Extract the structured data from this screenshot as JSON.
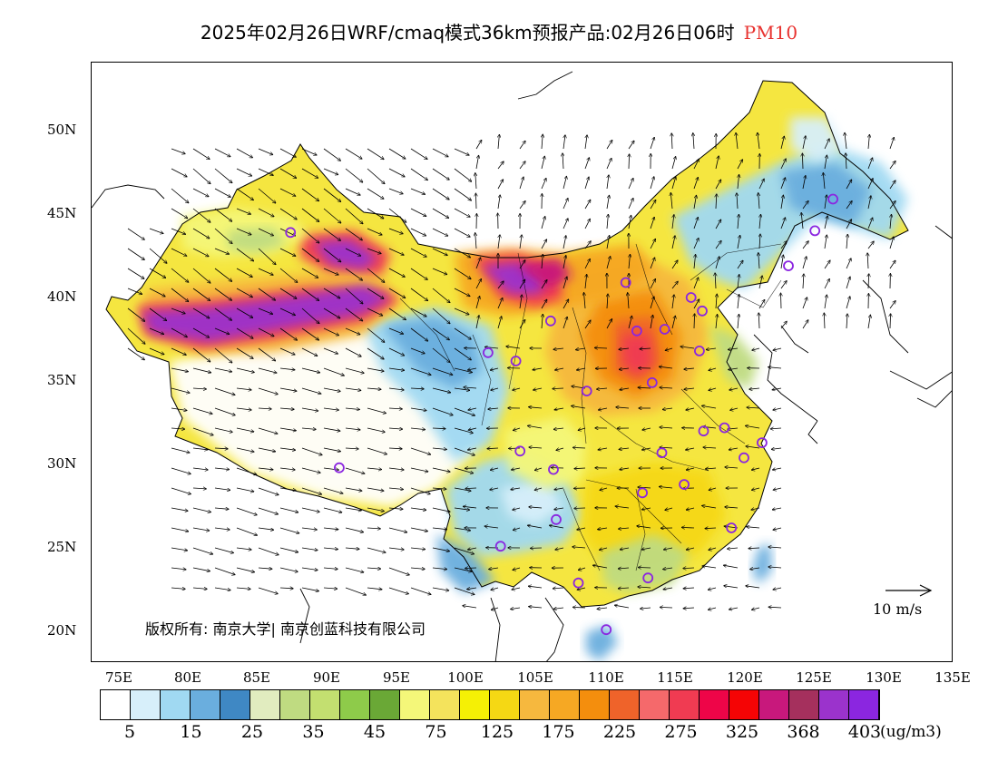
{
  "title": {
    "main": "2025年02月26日WRF/cmaq模式36km预报产品:02月26日06时",
    "pollutant": "PM10",
    "pollutant_color": "#e8322f"
  },
  "axes": {
    "lat_labels": [
      "50N",
      "45N",
      "40N",
      "35N",
      "30N",
      "25N",
      "20N"
    ],
    "lon_labels": [
      "75E",
      "80E",
      "85E",
      "90E",
      "95E",
      "100E",
      "105E",
      "110E",
      "115E",
      "120E",
      "125E",
      "130E",
      "135E"
    ]
  },
  "copyright": "版权所有: 南京大学| 南京创蓝科技有限公司",
  "wind_legend": "10 m/s",
  "colorbar": {
    "colors": [
      "#ffffff",
      "#d7effa",
      "#a0d9f2",
      "#6aaede",
      "#3f88c4",
      "#e1ecbf",
      "#bfdb81",
      "#c3df70",
      "#8ecb4a",
      "#6aa836",
      "#f4f779",
      "#f4e35c",
      "#f5f005",
      "#f5d814",
      "#f6b83e",
      "#f6a823",
      "#f48e0d",
      "#ef632a",
      "#f5696b",
      "#f03b52",
      "#ee0548",
      "#f50405",
      "#c8187c",
      "#a5305d",
      "#9b33cc",
      "#8b26e0"
    ],
    "labels": [
      "5",
      "15",
      "25",
      "35",
      "45",
      "75",
      "125",
      "175",
      "225",
      "275",
      "325",
      "368",
      "403"
    ],
    "unit": "(ug/m3)"
  },
  "stations": [
    {
      "lon": 87.6,
      "lat": 43.8
    },
    {
      "lon": 91.1,
      "lat": 29.7
    },
    {
      "lon": 101.8,
      "lat": 36.6
    },
    {
      "lon": 103.8,
      "lat": 36.1
    },
    {
      "lon": 106.3,
      "lat": 38.5
    },
    {
      "lon": 111.7,
      "lat": 40.8
    },
    {
      "lon": 112.5,
      "lat": 37.9
    },
    {
      "lon": 114.5,
      "lat": 38.0
    },
    {
      "lon": 116.4,
      "lat": 39.9
    },
    {
      "lon": 117.2,
      "lat": 39.1
    },
    {
      "lon": 117.0,
      "lat": 36.7
    },
    {
      "lon": 113.6,
      "lat": 34.8
    },
    {
      "lon": 108.9,
      "lat": 34.3
    },
    {
      "lon": 104.1,
      "lat": 30.7
    },
    {
      "lon": 106.5,
      "lat": 29.6
    },
    {
      "lon": 106.7,
      "lat": 26.6
    },
    {
      "lon": 102.7,
      "lat": 25.0
    },
    {
      "lon": 108.3,
      "lat": 22.8
    },
    {
      "lon": 113.3,
      "lat": 23.1
    },
    {
      "lon": 110.3,
      "lat": 20.0
    },
    {
      "lon": 114.3,
      "lat": 30.6
    },
    {
      "lon": 112.9,
      "lat": 28.2
    },
    {
      "lon": 115.9,
      "lat": 28.7
    },
    {
      "lon": 119.3,
      "lat": 26.1
    },
    {
      "lon": 120.2,
      "lat": 30.3
    },
    {
      "lon": 118.8,
      "lat": 32.1
    },
    {
      "lon": 117.3,
      "lat": 31.9
    },
    {
      "lon": 121.5,
      "lat": 31.2
    },
    {
      "lon": 123.4,
      "lat": 41.8
    },
    {
      "lon": 125.3,
      "lat": 43.9
    },
    {
      "lon": 126.6,
      "lat": 45.8
    }
  ]
}
